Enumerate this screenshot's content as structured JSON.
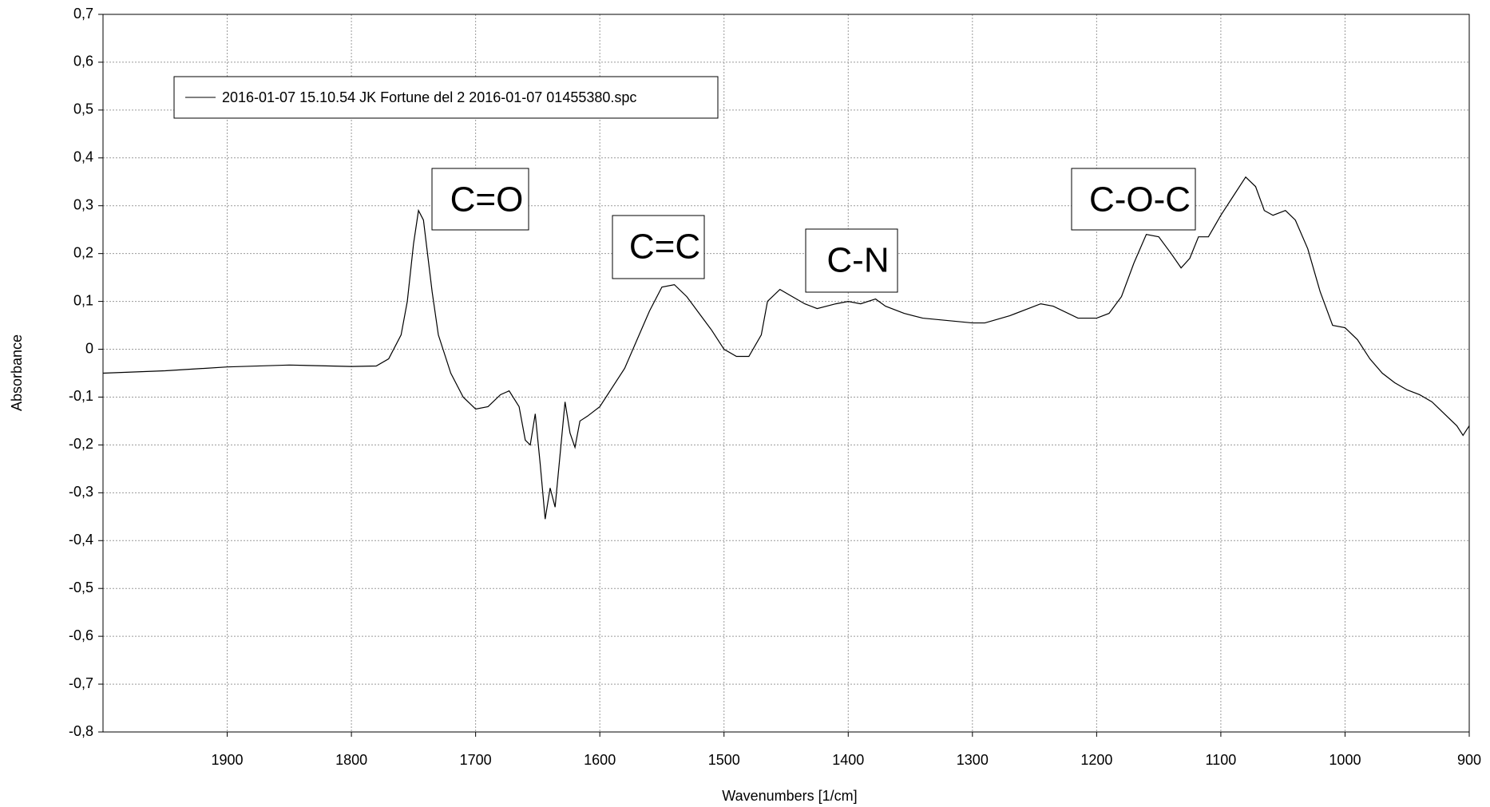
{
  "chart_data": {
    "type": "line",
    "xlabel": "Wavenumbers [1/cm]",
    "ylabel": "Absorbance",
    "xlim": [
      2000,
      900
    ],
    "ylim": [
      -0.8,
      0.7
    ],
    "xticks": [
      1900,
      1800,
      1700,
      1600,
      1500,
      1400,
      1300,
      1200,
      1100,
      1000,
      900
    ],
    "yticks": [
      {
        "value": 0.7,
        "label": "0,7"
      },
      {
        "value": 0.6,
        "label": "0,6"
      },
      {
        "value": 0.5,
        "label": "0,5"
      },
      {
        "value": 0.4,
        "label": "0,4"
      },
      {
        "value": 0.3,
        "label": "0,3"
      },
      {
        "value": 0.2,
        "label": "0,2"
      },
      {
        "value": 0.1,
        "label": "0,1"
      },
      0,
      {
        "value": -0.1,
        "label": "-0,1"
      },
      {
        "value": -0.2,
        "label": "-0,2"
      },
      {
        "value": -0.3,
        "label": "-0,3"
      },
      {
        "value": -0.4,
        "label": "-0,4"
      },
      {
        "value": -0.5,
        "label": "-0,5"
      },
      {
        "value": -0.6,
        "label": "-0,6"
      },
      {
        "value": -0.7,
        "label": "-0,7"
      },
      {
        "value": -0.8,
        "label": "-0,8"
      }
    ],
    "grid": true,
    "annotations": [
      "C=O",
      "C=C",
      "C-N",
      "C-O-C"
    ],
    "x": [
      2000,
      1950,
      1900,
      1850,
      1800,
      1780,
      1770,
      1760,
      1755,
      1750,
      1746,
      1742,
      1735,
      1730,
      1720,
      1710,
      1700,
      1690,
      1680,
      1673,
      1665,
      1660,
      1656,
      1652,
      1648,
      1644,
      1640,
      1636,
      1632,
      1628,
      1624,
      1620,
      1616,
      1610,
      1600,
      1590,
      1580,
      1570,
      1560,
      1550,
      1540,
      1530,
      1520,
      1510,
      1500,
      1490,
      1480,
      1470,
      1465,
      1455,
      1445,
      1435,
      1425,
      1410,
      1400,
      1390,
      1378,
      1370,
      1355,
      1340,
      1320,
      1300,
      1290,
      1270,
      1245,
      1235,
      1215,
      1200,
      1190,
      1180,
      1170,
      1160,
      1150,
      1140,
      1132,
      1125,
      1118,
      1110,
      1100,
      1090,
      1080,
      1072,
      1065,
      1058,
      1048,
      1040,
      1030,
      1020,
      1010,
      1000,
      990,
      980,
      970,
      960,
      950,
      940,
      930,
      920,
      910,
      905,
      900
    ],
    "series": [
      {
        "name": "2016-01-07 15.10.54 JK Fortune del 2 2016-01-07 01455380.spc",
        "color": "#000000",
        "values": [
          -0.05,
          -0.045,
          -0.037,
          -0.033,
          -0.036,
          -0.035,
          -0.02,
          0.03,
          0.1,
          0.22,
          0.29,
          0.27,
          0.12,
          0.03,
          -0.05,
          -0.1,
          -0.125,
          -0.12,
          -0.095,
          -0.087,
          -0.12,
          -0.19,
          -0.2,
          -0.135,
          -0.24,
          -0.355,
          -0.29,
          -0.33,
          -0.22,
          -0.11,
          -0.175,
          -0.205,
          -0.15,
          -0.14,
          -0.12,
          -0.08,
          -0.04,
          0.02,
          0.08,
          0.13,
          0.135,
          0.11,
          0.075,
          0.04,
          0.0,
          -0.015,
          -0.015,
          0.03,
          0.1,
          0.125,
          0.11,
          0.095,
          0.085,
          0.095,
          0.1,
          0.095,
          0.105,
          0.09,
          0.075,
          0.065,
          0.06,
          0.055,
          0.055,
          0.07,
          0.095,
          0.09,
          0.065,
          0.065,
          0.075,
          0.11,
          0.18,
          0.24,
          0.235,
          0.2,
          0.17,
          0.19,
          0.235,
          0.235,
          0.28,
          0.32,
          0.36,
          0.34,
          0.29,
          0.28,
          0.29,
          0.27,
          0.21,
          0.12,
          0.05,
          0.045,
          0.02,
          -0.02,
          -0.05,
          -0.07,
          -0.085,
          -0.095,
          -0.11,
          -0.135,
          -0.16,
          -0.18,
          -0.16
        ]
      }
    ]
  }
}
